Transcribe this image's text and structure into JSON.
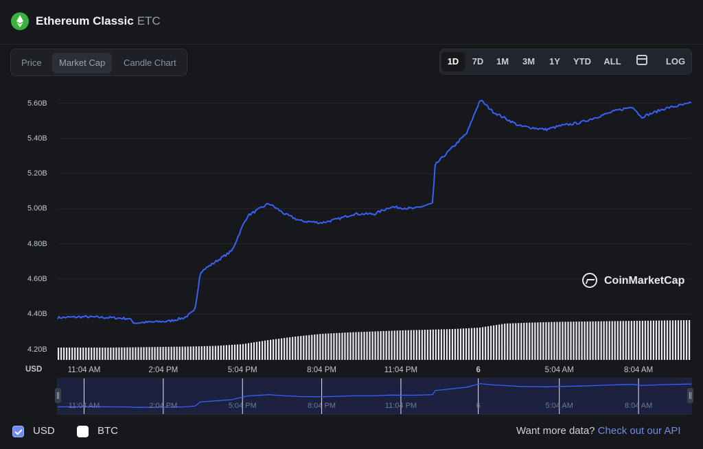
{
  "header": {
    "title": "Ethereum Classic",
    "ticker": "ETC",
    "logo_icon": "ethereum-classic-logo",
    "logo_color": "#3ab03e"
  },
  "view_tabs": [
    {
      "label": "Price",
      "active": false
    },
    {
      "label": "Market Cap",
      "active": true
    },
    {
      "label": "Candle Chart",
      "active": false
    }
  ],
  "ranges": [
    {
      "label": "1D",
      "active": true
    },
    {
      "label": "7D",
      "active": false
    },
    {
      "label": "1M",
      "active": false
    },
    {
      "label": "3M",
      "active": false
    },
    {
      "label": "1Y",
      "active": false
    },
    {
      "label": "YTD",
      "active": false
    },
    {
      "label": "ALL",
      "active": false
    }
  ],
  "calendar_icon": "calendar-icon",
  "log_label": "LOG",
  "watermark": "CoinMarketCap",
  "chart_data": {
    "type": "line",
    "currency_label": "USD",
    "line_color": "#3861fb",
    "y_ticks": [
      "5.60B",
      "5.40B",
      "5.20B",
      "5.00B",
      "4.80B",
      "4.60B",
      "4.40B",
      "4.20B"
    ],
    "y_tick_values": [
      5.6,
      5.4,
      5.2,
      5.0,
      4.8,
      4.6,
      4.4,
      4.2
    ],
    "ylim": [
      4.14,
      5.68
    ],
    "x_ticks": [
      "11:04 AM",
      "2:04 PM",
      "5:04 PM",
      "8:04 PM",
      "11:04 PM",
      "6",
      "5:04 AM",
      "8:04 AM"
    ],
    "x_tick_hours": [
      1,
      4,
      7,
      10,
      13,
      15.93,
      19,
      22
    ],
    "xlim_hours": [
      0,
      24
    ],
    "market_cap_billions_hourly": [
      4.38,
      4.385,
      4.38,
      4.375,
      4.35,
      4.36,
      4.38,
      4.42,
      4.64,
      4.7,
      4.76,
      4.9,
      4.96,
      5.03,
      4.97,
      4.93,
      4.92,
      4.94,
      4.97,
      4.97,
      5.01,
      5.0,
      5.03,
      5.25,
      5.43,
      5.62,
      5.55,
      5.47,
      5.45,
      5.47,
      5.49,
      5.53,
      5.56,
      5.58,
      5.52,
      5.57,
      5.6
    ],
    "sample_hours": [
      0,
      1,
      2,
      2.7,
      2.9,
      4.2,
      4.8,
      5.2,
      5.4,
      6,
      6.6,
      7,
      7.2,
      8,
      8.6,
      9.2,
      10,
      10.6,
      11.2,
      12,
      12.6,
      13.5,
      14.2,
      14.3,
      15.5,
      16,
      16.5,
      17.5,
      18.5,
      19,
      19.8,
      20.6,
      21.2,
      21.8,
      22.1,
      23,
      24
    ],
    "volume_bars_note": "",
    "volume_relative": [
      0.2,
      0.2,
      0.2,
      0.21,
      0.22,
      0.23,
      0.25,
      0.3,
      0.42,
      0.52,
      0.6,
      0.64,
      0.67,
      0.7,
      0.72,
      0.74,
      0.78,
      0.9,
      0.93,
      0.95,
      0.96,
      0.97,
      0.98,
      0.99,
      1.0
    ]
  },
  "navigator": {
    "x_ticks": [
      "11:04 AM",
      "2:04 PM",
      "5:04 PM",
      "8:04 PM",
      "11:04 PM",
      "6",
      "5:04 AM",
      "8:04 AM"
    ]
  },
  "footer": {
    "usd_label": "USD",
    "usd_checked": true,
    "btc_label": "BTC",
    "btc_checked": false,
    "more_text": "Want more data?",
    "more_link": "Check out our API"
  }
}
